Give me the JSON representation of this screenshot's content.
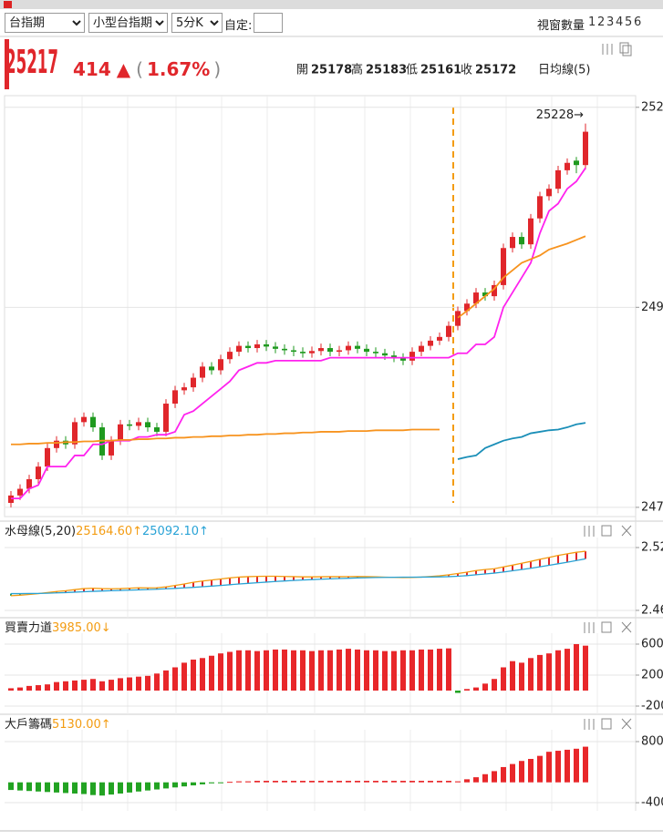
{
  "toolbar": {
    "symbols": [
      "台指期",
      "小型台指期"
    ],
    "period": "5分K",
    "custom_label": "自定:",
    "window_label": "視窗數量",
    "window_options": [
      1,
      2,
      3,
      4,
      5,
      6
    ]
  },
  "quote": {
    "price": 25217,
    "change": 414,
    "arrow": "▲",
    "open_paren": "(",
    "change_pct": "1.67%",
    "close_paren": ")",
    "ohlc": [
      {
        "label": "開",
        "value": 25178
      },
      {
        "label": "高",
        "value": 25183
      },
      {
        "label": "低",
        "value": 25161
      },
      {
        "label": "收",
        "value": 25172
      }
    ],
    "ma_label": "日均線(5)"
  },
  "chart_data": [
    {
      "type": "candlestick",
      "annotation": "25228→",
      "up_color": "#e0262b",
      "down_color": "#1f9a1f",
      "ylim": [
        24700,
        25262
      ],
      "yticks": [
        {
          "value": 25250,
          "label": "252"
        },
        {
          "value": 24980,
          "label": "249"
        },
        {
          "value": 24710,
          "label": "247"
        }
      ],
      "open": [
        24716,
        24726,
        24735,
        24748,
        24765,
        24790,
        24800,
        24795,
        24825,
        24832,
        24818,
        24780,
        24800,
        24822,
        24820,
        24825,
        24818,
        24812,
        24850,
        24868,
        24872,
        24885,
        24900,
        24895,
        24910,
        24920,
        24928,
        24925,
        24930,
        24927,
        24924,
        24922,
        24920,
        24918,
        24921,
        24925,
        24920,
        24922,
        24928,
        24924,
        24920,
        24918,
        24915,
        24912,
        24908,
        24920,
        24928,
        24935,
        24940,
        24955,
        24975,
        24985,
        25000,
        24995,
        25010,
        25060,
        25075,
        25065,
        25100,
        25130,
        25140,
        25165,
        25178,
        25172
      ],
      "high": [
        24732,
        24741,
        24754,
        24771,
        24796,
        24806,
        24806,
        24831,
        24838,
        24838,
        24824,
        24806,
        24828,
        24828,
        24831,
        24831,
        24824,
        24856,
        24874,
        24878,
        24891,
        24906,
        24906,
        24916,
        24926,
        24934,
        24934,
        24936,
        24936,
        24933,
        24930,
        24928,
        24926,
        24927,
        24931,
        24931,
        24928,
        24934,
        24934,
        24930,
        24926,
        24924,
        24921,
        24918,
        24926,
        24934,
        24941,
        24946,
        24961,
        24981,
        24991,
        25006,
        25006,
        25016,
        25066,
        25081,
        25081,
        25106,
        25136,
        25146,
        25171,
        25181,
        25183,
        25228
      ],
      "low": [
        24710,
        24720,
        24729,
        24742,
        24759,
        24784,
        24789,
        24789,
        24819,
        24812,
        24774,
        24774,
        24794,
        24814,
        24814,
        24812,
        24806,
        24806,
        24844,
        24862,
        24866,
        24879,
        24889,
        24889,
        24904,
        24914,
        24919,
        24919,
        24921,
        24918,
        24916,
        24914,
        24912,
        24912,
        24915,
        24914,
        24914,
        24916,
        24918,
        24914,
        24912,
        24909,
        24906,
        24902,
        24902,
        24914,
        24922,
        24929,
        24934,
        24949,
        24969,
        24979,
        24989,
        24989,
        25004,
        25054,
        25059,
        25059,
        25094,
        25124,
        25134,
        25159,
        25161,
        25166
      ],
      "close": [
        24726,
        24735,
        24748,
        24765,
        24790,
        24800,
        24795,
        24825,
        24832,
        24818,
        24780,
        24800,
        24822,
        24820,
        24825,
        24818,
        24812,
        24850,
        24868,
        24872,
        24885,
        24900,
        24895,
        24910,
        24920,
        24928,
        24925,
        24930,
        24927,
        24924,
        24922,
        24920,
        24918,
        24921,
        24925,
        24920,
        24922,
        24928,
        24924,
        24920,
        24918,
        24915,
        24912,
        24908,
        24920,
        24928,
        24935,
        24940,
        24955,
        24975,
        24985,
        25000,
        24995,
        25010,
        25060,
        25075,
        25065,
        25100,
        25130,
        25140,
        25165,
        25175,
        25172,
        25217
      ],
      "lines": [
        {
          "color": "#ff22ee",
          "values": [
            24722,
            24722,
            24735,
            24740,
            24765,
            24765,
            24765,
            24780,
            24780,
            24795,
            24795,
            24800,
            24800,
            24800,
            24805,
            24805,
            24808,
            24808,
            24812,
            24835,
            24840,
            24850,
            24860,
            24870,
            24880,
            24895,
            24900,
            24905,
            24905,
            24908,
            24908,
            24908,
            24908,
            24908,
            24908,
            24912,
            24912,
            24912,
            24912,
            24912,
            24912,
            24912,
            24912,
            24912,
            24912,
            24912,
            24912,
            24912,
            24912,
            24918,
            24918,
            24930,
            24930,
            24940,
            24980,
            25000,
            25020,
            25040,
            25080,
            25110,
            25120,
            25140,
            25150,
            25168
          ]
        },
        {
          "color": "#f7931e",
          "values": [
            24795,
            24795,
            24796,
            24796,
            24797,
            24797,
            24798,
            24798,
            24799,
            24799,
            24800,
            24800,
            24801,
            24801,
            24802,
            24802,
            24803,
            24803,
            24804,
            24804,
            24805,
            24805,
            24806,
            24806,
            24807,
            24807,
            24808,
            24808,
            24809,
            24809,
            24810,
            24810,
            24811,
            24811,
            24812,
            24812,
            24812,
            24813,
            24813,
            24813,
            24814,
            24814,
            24814,
            24814,
            24815,
            24815,
            24815,
            24815,
            null,
            24966,
            24975,
            24985,
            24995,
            25005,
            25020,
            25030,
            25040,
            25045,
            25050,
            25058,
            25062,
            25066,
            25071,
            25076
          ]
        },
        {
          "color": "#1b8fb8",
          "values": [
            null,
            null,
            null,
            null,
            null,
            null,
            null,
            null,
            null,
            null,
            null,
            null,
            null,
            null,
            null,
            null,
            null,
            null,
            null,
            null,
            null,
            null,
            null,
            null,
            null,
            null,
            null,
            null,
            null,
            null,
            null,
            null,
            null,
            null,
            null,
            null,
            null,
            null,
            null,
            null,
            null,
            null,
            null,
            null,
            null,
            null,
            null,
            null,
            null,
            24775,
            24778,
            24780,
            24790,
            24795,
            24800,
            24803,
            24805,
            24810,
            24812,
            24814,
            24815,
            24818,
            24822,
            24824
          ]
        }
      ]
    },
    {
      "type": "line",
      "title": "水母線(5,20)",
      "up_color": "#e0262b",
      "down_color": "#2aa15a",
      "ylim": [
        24530,
        25261
      ],
      "yticks": [
        {
          "value": 25200,
          "label": "2.52"
        },
        {
          "value": 24600,
          "label": "2.46"
        }
      ],
      "series": [
        {
          "name": "25164.60↑",
          "color": "#f39c12",
          "values": [
            24740,
            24745,
            24752,
            24760,
            24770,
            24780,
            24788,
            24798,
            24808,
            24812,
            24808,
            24806,
            24808,
            24812,
            24816,
            24815,
            24816,
            24825,
            24838,
            24852,
            24868,
            24880,
            24890,
            24900,
            24910,
            24918,
            24922,
            24925,
            24926,
            24926,
            24924,
            24922,
            24920,
            24920,
            24921,
            24922,
            24922,
            24923,
            24924,
            24923,
            24920,
            24917,
            24915,
            24913,
            24914,
            24918,
            24924,
            24930,
            24940,
            24952,
            24965,
            24980,
            24990,
            24998,
            25015,
            25032,
            25050,
            25068,
            25088,
            25105,
            25125,
            25140,
            25155,
            25164.6
          ]
        },
        {
          "name": "25092.10↑",
          "color": "#29a3d6",
          "values": [
            24760,
            24760,
            24761,
            24762,
            24764,
            24767,
            24770,
            24774,
            24778,
            24782,
            24785,
            24788,
            24790,
            24793,
            24796,
            24799,
            24802,
            24806,
            24810,
            24815,
            24820,
            24826,
            24832,
            24838,
            24845,
            24852,
            24858,
            24864,
            24870,
            24876,
            24881,
            24886,
            24890,
            24894,
            24898,
            24901,
            24904,
            24907,
            24910,
            24912,
            24914,
            24915,
            24916,
            24917,
            24917,
            24918,
            24919,
            24920,
            24922,
            24926,
            24932,
            24940,
            24948,
            24956,
            24966,
            24978,
            24990,
            25002,
            25016,
            25030,
            25045,
            25060,
            25076,
            25092.1
          ]
        }
      ]
    },
    {
      "type": "bar",
      "title": "買賣力道",
      "reading": "3985.00↓",
      "reading_color": "#f39c12",
      "up_color": "#e8272a",
      "down_color": "#22a322",
      "ylim": [
        -306,
        694
      ],
      "yticks": [
        600,
        200,
        -200
      ],
      "values": [
        30,
        40,
        60,
        70,
        80,
        110,
        120,
        130,
        140,
        150,
        120,
        140,
        160,
        170,
        180,
        190,
        220,
        260,
        300,
        360,
        400,
        420,
        450,
        480,
        500,
        520,
        520,
        510,
        520,
        530,
        530,
        520,
        520,
        510,
        520,
        520,
        530,
        540,
        530,
        520,
        520,
        510,
        510,
        520,
        520,
        530,
        530,
        540,
        545,
        -30,
        20,
        40,
        90,
        150,
        300,
        380,
        360,
        420,
        460,
        480,
        520,
        540,
        600,
        580
      ]
    },
    {
      "type": "bar",
      "title": "大戶籌碼",
      "reading": "5130.00↑",
      "reading_color": "#f39c12",
      "up_color": "#e8272a",
      "down_color": "#22a322",
      "ylim": [
        -560,
        961
      ],
      "yticks": [
        800,
        -400
      ],
      "values": [
        -150,
        -160,
        -170,
        -180,
        -190,
        -200,
        -210,
        -220,
        -230,
        -250,
        -260,
        -240,
        -220,
        -200,
        -180,
        -160,
        -140,
        -120,
        -100,
        -80,
        -60,
        -40,
        -20,
        -10,
        10,
        20,
        20,
        30,
        30,
        30,
        30,
        30,
        30,
        30,
        30,
        30,
        30,
        30,
        30,
        30,
        30,
        30,
        30,
        30,
        30,
        30,
        30,
        30,
        30,
        20,
        60,
        100,
        160,
        220,
        300,
        360,
        420,
        460,
        520,
        600,
        620,
        640,
        660,
        700
      ]
    }
  ]
}
